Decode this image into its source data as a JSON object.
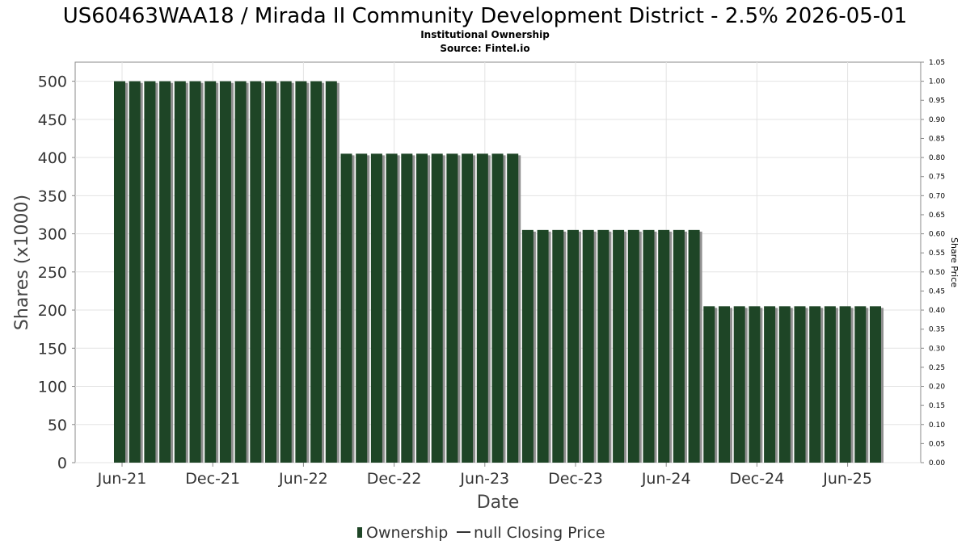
{
  "chart_data": {
    "type": "bar",
    "title": "US60463WAA18 / Mirada II Community Development District - 2.5% 2026-05-01",
    "subtitle": "Institutional Ownership",
    "source": "Source: Fintel.io",
    "xlabel": "Date",
    "ylabel": "Shares (x1000)",
    "ylabel_right": "Share Price",
    "ylim": [
      0,
      525
    ],
    "ylim_right": [
      0,
      1.05
    ],
    "yticks": [
      0,
      50,
      100,
      150,
      200,
      250,
      300,
      350,
      400,
      450,
      500
    ],
    "yticks_right": [
      "0.00",
      "0.05",
      "0.10",
      "0.15",
      "0.20",
      "0.25",
      "0.30",
      "0.35",
      "0.40",
      "0.45",
      "0.50",
      "0.55",
      "0.60",
      "0.65",
      "0.70",
      "0.75",
      "0.80",
      "0.85",
      "0.90",
      "0.95",
      "1.00",
      "1.05"
    ],
    "xticks": [
      "Jun-21",
      "Dec-21",
      "Jun-22",
      "Dec-22",
      "Jun-23",
      "Dec-23",
      "Jun-24",
      "Dec-24",
      "Jun-25"
    ],
    "grid": true,
    "legend_position": "bottom",
    "colors": {
      "bar": "#1e4526",
      "bar_shadow": "#8f8f8f",
      "grid": "#e3e3e3",
      "axis": "#888888"
    },
    "series": [
      {
        "name": "Ownership",
        "values": [
          500,
          500,
          500,
          500,
          500,
          500,
          500,
          500,
          500,
          500,
          500,
          500,
          500,
          500,
          500,
          405,
          405,
          405,
          405,
          405,
          405,
          405,
          405,
          405,
          405,
          405,
          405,
          305,
          305,
          305,
          305,
          305,
          305,
          305,
          305,
          305,
          305,
          305,
          305,
          205,
          205,
          205,
          205,
          205,
          205,
          205,
          205,
          205,
          205,
          205,
          205
        ]
      }
    ],
    "legend": [
      {
        "label": "Ownership",
        "marker": "bar"
      },
      {
        "label": "null Closing Price",
        "marker": "line"
      }
    ]
  }
}
